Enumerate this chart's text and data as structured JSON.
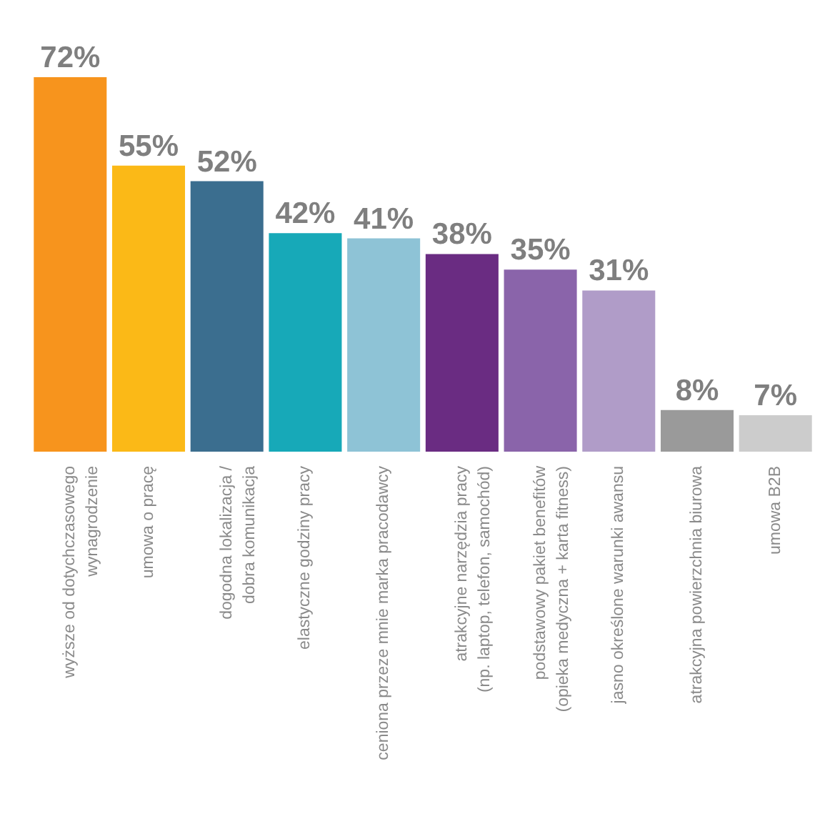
{
  "chart_data": {
    "type": "bar",
    "categories": [
      "wyższe od dotychczasowego\nwynagrodzenie",
      "umowa o pracę",
      "dogodna lokalizacja /\ndobra komunikacja",
      "elastyczne godziny pracy",
      "ceniona przeze mnie marka pracodawcy",
      "atrakcyjne narzędzia pracy\n(np. laptop, telefon, samochód)",
      "podstawowy pakiet benefitów\n(opieka medyczna + karta fitness)",
      "jasno określone warunki awansu",
      "atrakcyjna powierzchnia biurowa",
      "umowa B2B"
    ],
    "values": [
      72,
      55,
      52,
      42,
      41,
      38,
      35,
      31,
      8,
      7
    ],
    "value_labels": [
      "72%",
      "55%",
      "52%",
      "42%",
      "41%",
      "38%",
      "35%",
      "31%",
      "8%",
      "7%"
    ],
    "colors": [
      "#f7941d",
      "#fbb917",
      "#3b6e8f",
      "#17a9b8",
      "#8ec3d6",
      "#6a2c82",
      "#8a64aa",
      "#b09cc8",
      "#9a9a9a",
      "#cccccc"
    ]
  }
}
